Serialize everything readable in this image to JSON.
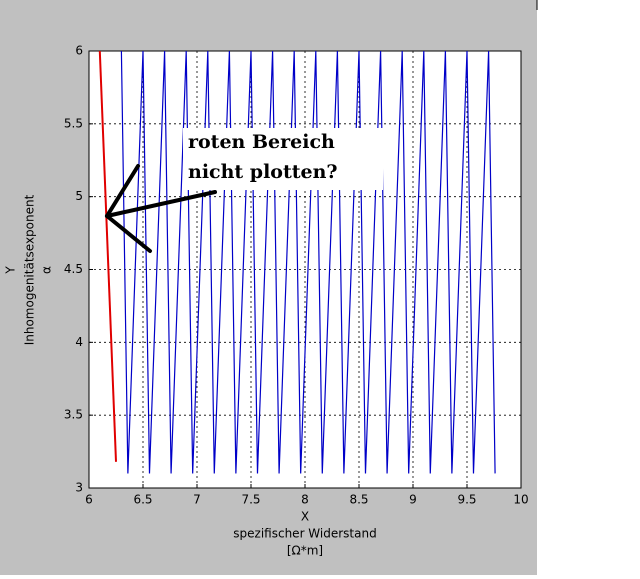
{
  "chart_data": {
    "type": "line",
    "xlabel": [
      "X",
      "spezifischer Widerstand",
      "[Ω*m]"
    ],
    "ylabel": [
      "Y",
      "Inhomogenitätsexponent",
      "α"
    ],
    "annotation": [
      "roten Bereich",
      "nicht plotten?"
    ],
    "xlim": [
      6,
      10
    ],
    "xticks": [
      6,
      6.5,
      7,
      7.5,
      8,
      8.5,
      9,
      9.5,
      10
    ],
    "ylim": [
      3,
      6
    ],
    "yticks": [
      3,
      3.5,
      4,
      4.5,
      5,
      5.5,
      6
    ],
    "grid": true,
    "series": [
      {
        "color": "#0000c8",
        "x": [
          6.3,
          6.36,
          6.5,
          6.56,
          6.7,
          6.76,
          6.9,
          6.96,
          7.1,
          7.16,
          7.3,
          7.36,
          7.5,
          7.56,
          7.7,
          7.76,
          7.9,
          7.96,
          8.1,
          8.16,
          8.3,
          8.36,
          8.5,
          8.56,
          8.7,
          8.76,
          8.9,
          8.96,
          9.1,
          9.16,
          9.3,
          9.36,
          9.5,
          9.56,
          9.7,
          9.76
        ],
        "values": [
          6,
          3.1,
          6,
          3.1,
          6,
          3.1,
          6,
          3.1,
          6,
          3.1,
          6,
          3.1,
          6,
          3.1,
          6,
          3.1,
          6,
          3.1,
          6,
          3.1,
          6,
          3.1,
          6,
          3.1,
          6,
          3.1,
          6,
          3.1,
          6,
          3.1,
          6,
          3.1,
          6,
          3.1,
          6,
          3.1
        ]
      },
      {
        "color": "#e00000",
        "x": [
          6.1,
          6.25
        ],
        "values": [
          6,
          3.18
        ]
      }
    ]
  }
}
